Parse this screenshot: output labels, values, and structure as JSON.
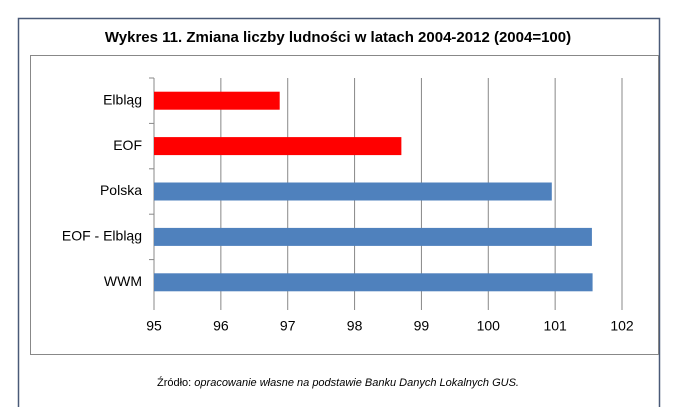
{
  "chart_data": {
    "type": "barh",
    "title": "Wykres 11. Zmiana liczby ludności w latach 2004-2012 (2004=100)",
    "categories": [
      "Elbląg",
      "EOF",
      "Polska",
      "EOF - Elbląg",
      "WWM"
    ],
    "values": [
      96.88,
      98.7,
      100.95,
      101.55,
      101.56
    ],
    "colors": [
      "#ff0000",
      "#ff0000",
      "#4f81bd",
      "#4f81bd",
      "#4f81bd"
    ],
    "xlim": [
      95,
      102
    ],
    "xticks": [
      95,
      96,
      97,
      98,
      99,
      100,
      101,
      102
    ],
    "grid": true,
    "source_label": "Źródło:",
    "source_text": "opracowanie własne na podstawie Banku Danych Lokalnych GUS."
  }
}
